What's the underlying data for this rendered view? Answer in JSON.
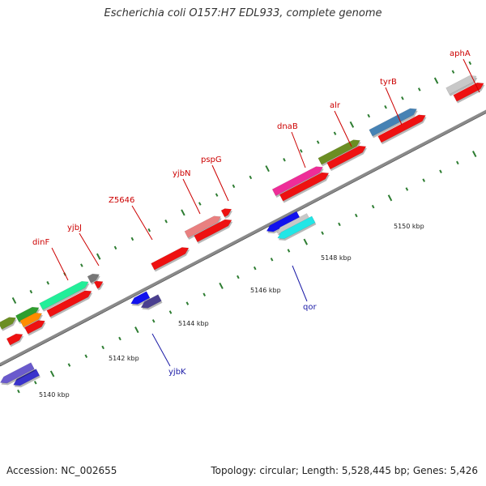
{
  "title": "Escherichia coli O157:H7 EDL933, complete genome",
  "footer": {
    "accession": "Accession: NC_002655",
    "info": "Topology: circular; Length: 5,528,445 bp; Genes: 5,426"
  },
  "colors": {
    "backbone": "#8a8a8a",
    "tick": "#2e7d32",
    "forward_label": "#cc0000",
    "reverse_label": "#1a1aa6",
    "cds_red": "#ee1111"
  },
  "kbp_labels": [
    "5140 kbp",
    "5142 kbp",
    "5144 kbp",
    "5146 kbp",
    "5148 kbp",
    "5150 kbp"
  ],
  "gene_labels": [
    {
      "name": "dinF",
      "strand": "forward"
    },
    {
      "name": "yjbJ",
      "strand": "forward"
    },
    {
      "name": "Z5646",
      "strand": "forward"
    },
    {
      "name": "yjbN",
      "strand": "forward"
    },
    {
      "name": "pspG",
      "strand": "forward"
    },
    {
      "name": "dnaB",
      "strand": "forward"
    },
    {
      "name": "alr",
      "strand": "forward"
    },
    {
      "name": "tyrB",
      "strand": "forward"
    },
    {
      "name": "aphA",
      "strand": "forward"
    },
    {
      "name": "yjbK",
      "strand": "reverse"
    },
    {
      "name": "qor",
      "strand": "reverse"
    }
  ]
}
